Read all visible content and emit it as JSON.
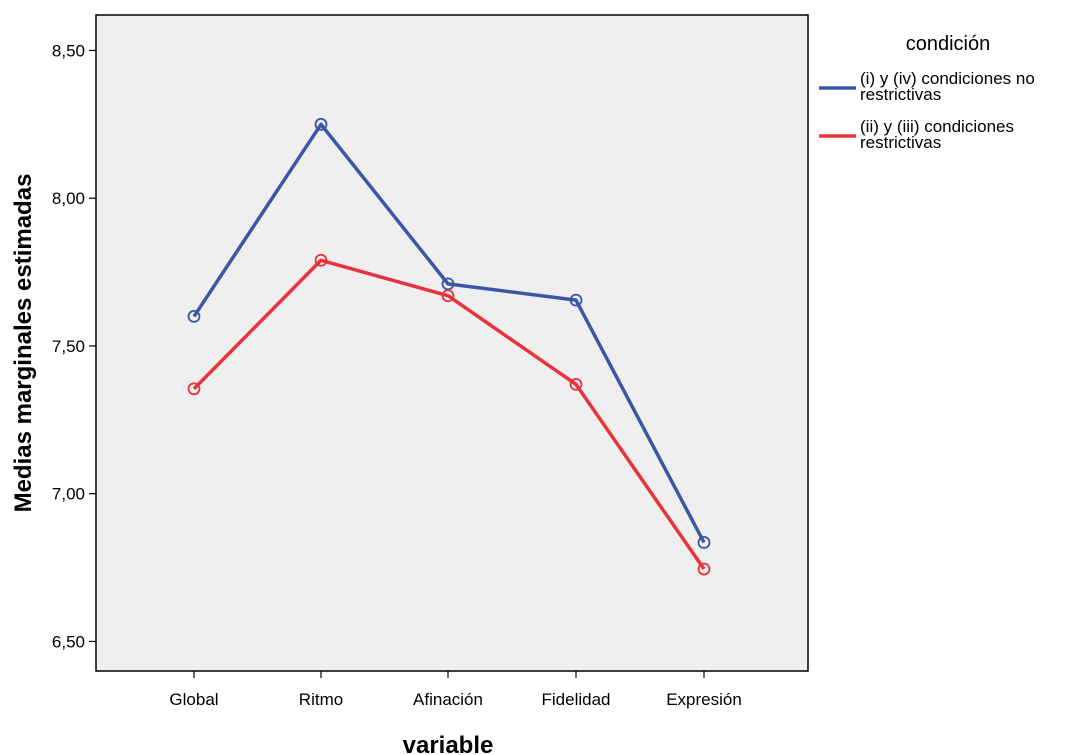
{
  "chart_data": {
    "type": "line",
    "xlabel": "variable",
    "ylabel": "Medias marginales estimadas",
    "categories": [
      "Global",
      "Ritmo",
      "Afinación",
      "Fidelidad",
      "Expresión"
    ],
    "ylim": [
      6.4,
      8.62
    ],
    "yticks": [
      6.5,
      7.0,
      7.5,
      8.0,
      8.5
    ],
    "ytick_labels": [
      "6,50",
      "7,00",
      "7,50",
      "8,00",
      "8,50"
    ],
    "grid": false,
    "background_color": "#efefef",
    "legend": {
      "title": "condición",
      "position": "right"
    },
    "series": [
      {
        "name_lines": [
          "(i) y (iv) condiciones no",
          "restrictivas"
        ],
        "color": "#3c56a6",
        "values": [
          7.6,
          8.25,
          7.71,
          7.655,
          6.835
        ]
      },
      {
        "name_lines": [
          "(ii) y (iii) condiciones",
          "restrictivas"
        ],
        "color": "#e8323c",
        "values": [
          7.355,
          7.79,
          7.67,
          7.37,
          6.745
        ]
      }
    ]
  }
}
